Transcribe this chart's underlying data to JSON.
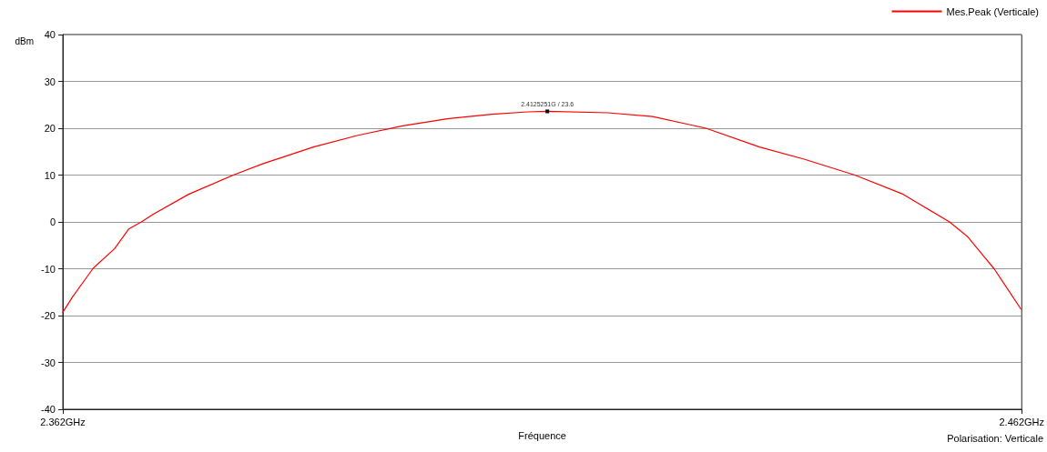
{
  "chart_data": {
    "type": "line",
    "xlabel": "Fréquence",
    "ylabel": "dBm",
    "series": [
      {
        "name": "Mes.Peak (Verticale)",
        "color": "#ff0000",
        "x": [
          2.362,
          2.36302,
          2.3646,
          2.36516,
          2.3674,
          2.36888,
          2.37019,
          2.3714,
          2.37512,
          2.37977,
          2.38284,
          2.38814,
          2.39279,
          2.39744,
          2.40209,
          2.40674,
          2.41047,
          2.4125251,
          2.41884,
          2.42349,
          2.42907,
          2.43465,
          2.4393,
          2.4446,
          2.44953,
          2.45167,
          2.45447,
          2.45633,
          2.45791,
          2.45912,
          2.46042,
          2.46191
        ],
        "values": [
          -19.3,
          -16,
          -11.5,
          -9.9,
          -5.7,
          -1.5,
          0,
          1.6,
          5.9,
          10,
          12.4,
          16,
          18.5,
          20.5,
          22,
          23,
          23.5,
          23.6,
          23.3,
          22.5,
          20,
          16,
          13.4,
          10,
          6,
          3.4,
          0,
          -3.1,
          -7,
          -10,
          -14,
          -18.6
        ]
      }
    ],
    "xlim": [
      2.362,
      2.462
    ],
    "xticks": [
      {
        "value": 2.362,
        "label": "2.362GHz"
      },
      {
        "value": 2.462,
        "label": "2.462GHz"
      }
    ],
    "ylim": [
      -40,
      40
    ],
    "yticks": [
      -40,
      -30,
      -20,
      -10,
      0,
      10,
      20,
      30,
      40
    ],
    "grid": "y",
    "legend": "top right",
    "marker": "none",
    "line_style": "solid",
    "annotations": [
      {
        "text": "2.4125251G / 23.6",
        "x": 2.4125251,
        "y": 23.6
      },
      "Polarisation: Verticale"
    ]
  }
}
